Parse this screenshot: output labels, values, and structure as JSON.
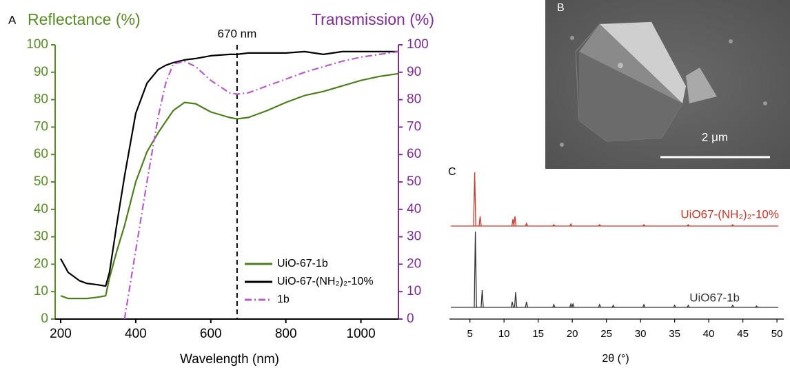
{
  "chart_data": [
    {
      "type": "line",
      "panel_label": "A",
      "ylabel": "Reflectance (%)",
      "y2label": "Transmission (%)",
      "xlabel": "Wavelength (nm)",
      "ycolor": "#5b8a29",
      "y2color": "#7b2d8e",
      "x": [
        200,
        220,
        250,
        270,
        300,
        320,
        330,
        350,
        370,
        400,
        430,
        460,
        480,
        500,
        530,
        560,
        600,
        650,
        670,
        700,
        750,
        800,
        850,
        900,
        950,
        1000,
        1050,
        1100
      ],
      "xlim": [
        200,
        1100
      ],
      "xticks": [
        200,
        400,
        600,
        800,
        1000
      ],
      "ylim": [
        0,
        100
      ],
      "yticks": [
        0,
        10,
        20,
        30,
        40,
        50,
        60,
        70,
        80,
        90,
        100
      ],
      "y2lim": [
        0,
        100
      ],
      "y2ticks": [
        0,
        10,
        20,
        30,
        40,
        50,
        60,
        70,
        80,
        90,
        100
      ],
      "legend": "lower right",
      "series": [
        {
          "name": "UiO-67-1b",
          "color": "#4e7d1e",
          "style": "solid",
          "values": [
            8.5,
            7.5,
            7.5,
            7.5,
            8,
            8.5,
            15,
            25,
            34,
            50,
            61,
            68,
            72,
            76,
            79,
            78.5,
            75.5,
            73.5,
            73,
            73.5,
            76,
            79,
            81.5,
            83,
            85,
            87,
            88.5,
            89.5
          ]
        },
        {
          "name": "UiO-67-(NH₂)₂-10%",
          "color": "#000000",
          "style": "solid",
          "values": [
            22,
            17,
            14,
            13,
            12.5,
            12,
            17,
            35,
            52,
            75,
            86,
            91,
            92.5,
            93.5,
            94.5,
            95,
            96,
            96.5,
            96.5,
            97,
            97,
            97,
            97.5,
            96.5,
            97.5,
            97.5,
            97.5,
            97.5
          ]
        },
        {
          "name": "1b",
          "color": "#b25fc4",
          "style": "dashdot",
          "axis": "y2",
          "values": [
            null,
            null,
            null,
            null,
            null,
            null,
            null,
            null,
            0,
            25,
            50,
            74,
            86,
            93,
            94,
            92,
            87,
            82.5,
            82,
            82.5,
            85,
            87.5,
            90,
            92,
            94,
            95.5,
            96.5,
            97.5
          ]
        }
      ],
      "annotations": [
        {
          "x": 670,
          "text": "670 nm"
        }
      ]
    },
    {
      "type": "xrd",
      "panel_label": "C",
      "xlabel": "2θ (°)",
      "xlim": [
        2,
        51
      ],
      "xticks": [
        5,
        10,
        15,
        20,
        25,
        30,
        35,
        40,
        45,
        50
      ],
      "series": [
        {
          "name": "UiO67-(NH₂)₂-10%",
          "color": "#c0392b",
          "x": [
            5.7,
            6.5,
            11.3,
            11.6,
            13.3,
            17.3,
            19.8,
            24,
            30.5,
            37,
            43.5
          ],
          "values": [
            78,
            14,
            10,
            14,
            4,
            2,
            3,
            2,
            2,
            2,
            2
          ]
        },
        {
          "name": "UiO67-1b",
          "color": "#333333",
          "x": [
            5.8,
            6.8,
            11.2,
            11.7,
            13.3,
            17.3,
            19.8,
            20.1,
            24,
            26,
            30.5,
            35,
            37,
            43.5,
            47
          ],
          "values": [
            110,
            25,
            8,
            22,
            8,
            4,
            5,
            5,
            4,
            3,
            4,
            3,
            3,
            3,
            2
          ]
        }
      ]
    }
  ],
  "image": {
    "panel_label": "B",
    "scale_bar": "2 μm"
  }
}
